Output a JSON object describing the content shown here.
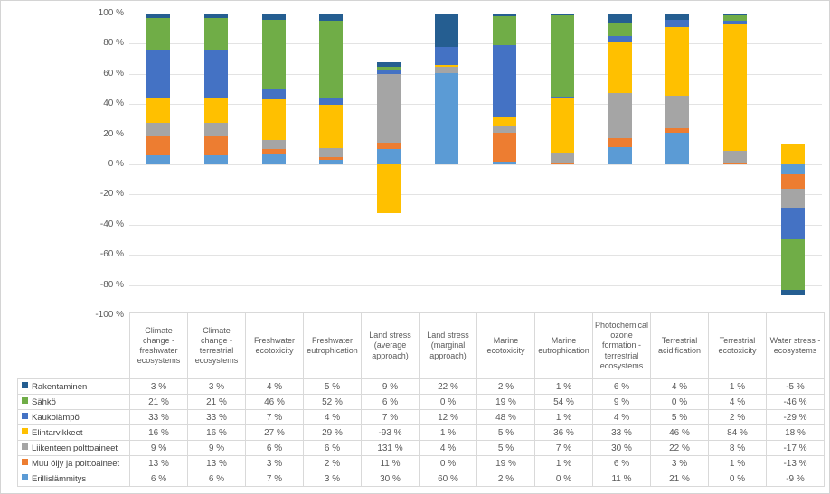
{
  "chart_data": {
    "type": "bar",
    "subtype": "stacked-100-percent-normalized-by-absolute-sum",
    "title": "",
    "xlabel": "",
    "ylabel": "",
    "grid": true,
    "legend_position": "table-left-column",
    "value_suffix": " %",
    "y_axis": {
      "min": -100,
      "max": 100,
      "step": 20,
      "values": [
        100,
        80,
        60,
        40,
        20,
        0,
        -20,
        -40,
        -60,
        -80,
        -100
      ],
      "labels": [
        "100 %",
        "80 %",
        "60 %",
        "40 %",
        "20 %",
        "0 %",
        "-20 %",
        "-40 %",
        "-60 %",
        "-80 %",
        "-100 %"
      ]
    },
    "categories": [
      "Climate change - freshwater ecosystems",
      "Climate change - terrestrial ecosystems",
      "Freshwater ecotoxicity",
      "Freshwater eutrophication",
      "Land stress (average approach)",
      "Land stress (marginal approach)",
      "Marine ecotoxicity",
      "Marine eutrophication",
      "Photochemical ozone formation - terrestrial ecosystems",
      "Terrestrial acidification",
      "Terrestrial ecotoxicity",
      "Water stress - ecosystems"
    ],
    "series": [
      {
        "name": "Rakentaminen",
        "color": "#255E91",
        "values": [
          3,
          3,
          4,
          5,
          9,
          22,
          2,
          1,
          6,
          4,
          1,
          -5
        ]
      },
      {
        "name": "Sähkö",
        "color": "#70AD47",
        "values": [
          21,
          21,
          46,
          52,
          6,
          0,
          19,
          54,
          9,
          0,
          4,
          -46
        ]
      },
      {
        "name": "Kaukolämpö",
        "color": "#4472C4",
        "values": [
          33,
          33,
          7,
          4,
          7,
          12,
          48,
          1,
          4,
          5,
          2,
          -29
        ]
      },
      {
        "name": "Elintarvikkeet",
        "color": "#FFC000",
        "values": [
          16,
          16,
          27,
          29,
          -93,
          1,
          5,
          36,
          33,
          46,
          84,
          18
        ]
      },
      {
        "name": "Liikenteen polttoaineet",
        "color": "#A5A5A5",
        "values": [
          9,
          9,
          6,
          6,
          131,
          4,
          5,
          7,
          30,
          22,
          8,
          -17
        ]
      },
      {
        "name": "Muu öljy ja polttoaineet",
        "color": "#ED7D31",
        "values": [
          13,
          13,
          3,
          2,
          11,
          0,
          19,
          1,
          6,
          3,
          1,
          -13
        ]
      },
      {
        "name": "Erillislämmitys",
        "color": "#5B9BD5",
        "values": [
          6,
          6,
          7,
          3,
          30,
          60,
          2,
          0,
          11,
          21,
          0,
          -9
        ]
      }
    ],
    "stacking_note": "Series stack bottom-to-top in reverse legend order; each segment height = abs(value)/sum(abs(values in category)); negatives stack downward from zero."
  },
  "colors": {
    "gridline": "#e3e3e3",
    "table_border": "#d9d9d9",
    "axis_text": "#595959",
    "cell_text": "#595959",
    "legend_text": "#404040",
    "frame_border": "#d4d4d4",
    "background": "#ffffff"
  }
}
